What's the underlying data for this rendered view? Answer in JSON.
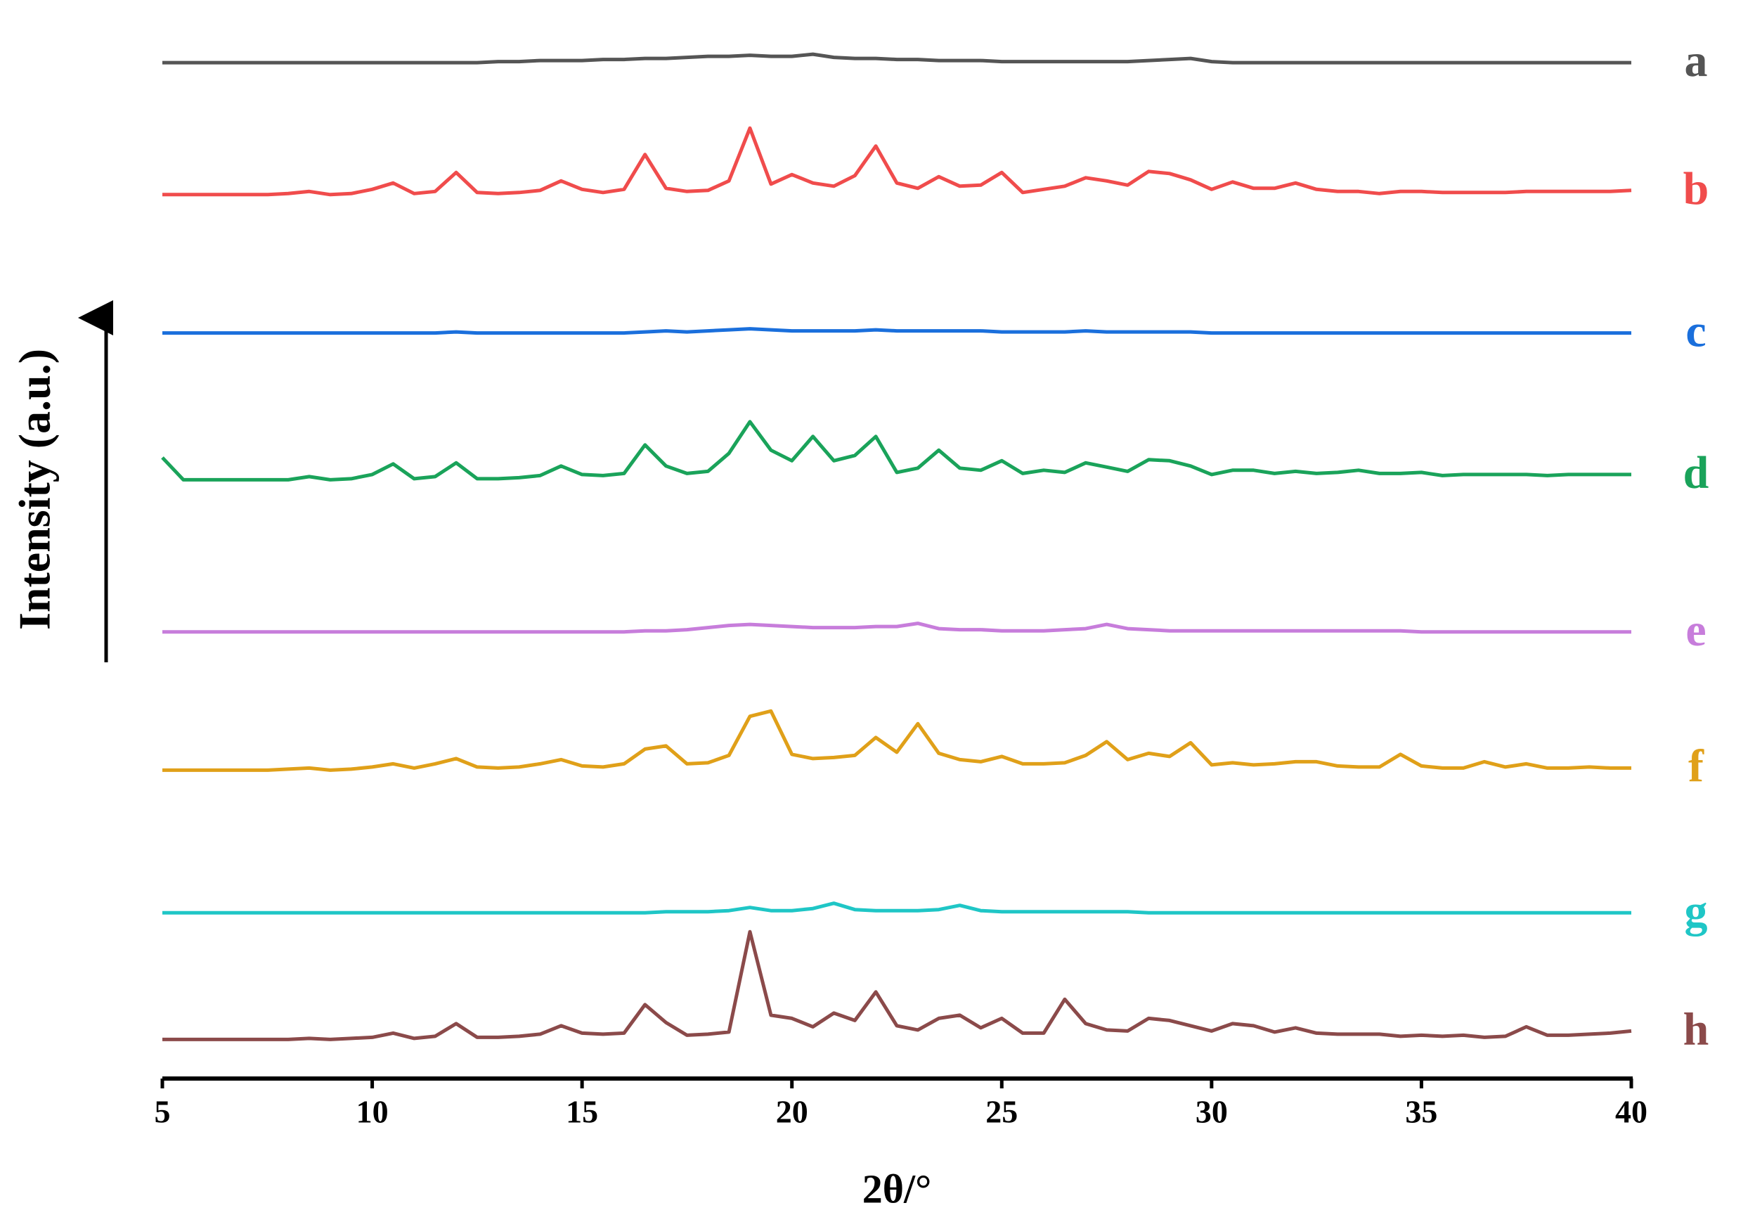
{
  "chart_data": {
    "type": "line",
    "x_label": "2θ/°",
    "y_label": "Intensity (a.u.)",
    "xlim": [
      5,
      40
    ],
    "xticks": [
      5,
      10,
      15,
      20,
      25,
      30,
      35,
      40
    ],
    "ylim": [
      0,
      100
    ],
    "grid": false,
    "x": [
      5,
      5.5,
      6,
      6.5,
      7,
      7.5,
      8,
      8.5,
      9,
      9.5,
      10,
      10.5,
      11,
      11.5,
      12,
      12.5,
      13,
      13.5,
      14,
      14.5,
      15,
      15.5,
      16,
      16.5,
      17,
      17.5,
      18,
      18.5,
      19,
      19.5,
      20,
      20.5,
      21,
      21.5,
      22,
      22.5,
      23,
      23.5,
      24,
      24.5,
      25,
      25.5,
      26,
      26.5,
      27,
      27.5,
      28,
      28.5,
      29,
      29.5,
      30,
      30.5,
      31,
      31.5,
      32,
      32.5,
      33,
      33.5,
      34,
      34.5,
      35,
      35.5,
      36,
      36.5,
      37,
      37.5,
      38,
      38.5,
      39,
      39.5,
      40
    ],
    "series": [
      {
        "name": "a",
        "color": "#555555",
        "values": [
          96.2,
          96.2,
          96.2,
          96.2,
          96.2,
          96.2,
          96.2,
          96.2,
          96.2,
          96.2,
          96.2,
          96.2,
          96.2,
          96.2,
          96.2,
          96.2,
          96.3,
          96.3,
          96.4,
          96.4,
          96.4,
          96.5,
          96.5,
          96.6,
          96.6,
          96.7,
          96.8,
          96.8,
          96.9,
          96.8,
          96.8,
          97.0,
          96.7,
          96.6,
          96.6,
          96.5,
          96.5,
          96.4,
          96.4,
          96.4,
          96.3,
          96.3,
          96.3,
          96.3,
          96.3,
          96.3,
          96.3,
          96.4,
          96.5,
          96.6,
          96.3,
          96.2,
          96.2,
          96.2,
          96.2,
          96.2,
          96.2,
          96.2,
          96.2,
          96.2,
          96.2,
          96.2,
          96.2,
          96.2,
          96.2,
          96.2,
          96.2,
          96.2,
          96.2,
          96.2,
          96.2
        ]
      },
      {
        "name": "b",
        "color": "#f04c4c",
        "values": [
          83.7,
          83.7,
          83.7,
          83.7,
          83.7,
          83.7,
          83.8,
          84.0,
          83.7,
          83.8,
          84.2,
          84.8,
          83.8,
          84.0,
          85.8,
          83.9,
          83.8,
          83.9,
          84.1,
          85.0,
          84.2,
          83.9,
          84.2,
          87.5,
          84.3,
          84.0,
          84.1,
          85.0,
          90.0,
          84.7,
          85.6,
          84.8,
          84.5,
          85.5,
          88.3,
          84.8,
          84.3,
          85.4,
          84.5,
          84.6,
          85.8,
          83.9,
          84.2,
          84.5,
          85.3,
          85.0,
          84.6,
          85.9,
          85.7,
          85.1,
          84.2,
          84.9,
          84.3,
          84.3,
          84.8,
          84.2,
          84.0,
          84.0,
          83.8,
          84.0,
          84.0,
          83.9,
          83.9,
          83.9,
          83.9,
          84.0,
          84.0,
          84.0,
          84.0,
          84.0,
          84.1
        ]
      },
      {
        "name": "c",
        "color": "#1a6fdc",
        "values": [
          70.6,
          70.6,
          70.6,
          70.6,
          70.6,
          70.6,
          70.6,
          70.6,
          70.6,
          70.6,
          70.6,
          70.6,
          70.6,
          70.6,
          70.7,
          70.6,
          70.6,
          70.6,
          70.6,
          70.6,
          70.6,
          70.6,
          70.6,
          70.7,
          70.8,
          70.7,
          70.8,
          70.9,
          71.0,
          70.9,
          70.8,
          70.8,
          70.8,
          70.8,
          70.9,
          70.8,
          70.8,
          70.8,
          70.8,
          70.8,
          70.7,
          70.7,
          70.7,
          70.7,
          70.8,
          70.7,
          70.7,
          70.7,
          70.7,
          70.7,
          70.6,
          70.6,
          70.6,
          70.6,
          70.6,
          70.6,
          70.6,
          70.6,
          70.6,
          70.6,
          70.6,
          70.6,
          70.6,
          70.6,
          70.6,
          70.6,
          70.6,
          70.6,
          70.6,
          70.6,
          70.6
        ]
      },
      {
        "name": "d",
        "color": "#1aa35a",
        "values": [
          58.8,
          56.7,
          56.7,
          56.7,
          56.7,
          56.7,
          56.7,
          57.0,
          56.7,
          56.8,
          57.2,
          58.2,
          56.8,
          57.0,
          58.3,
          56.8,
          56.8,
          56.9,
          57.1,
          58.0,
          57.2,
          57.1,
          57.3,
          60.0,
          58.0,
          57.3,
          57.5,
          59.2,
          62.2,
          59.5,
          58.5,
          60.8,
          58.5,
          59.0,
          60.8,
          57.4,
          57.8,
          59.5,
          57.8,
          57.6,
          58.5,
          57.3,
          57.6,
          57.4,
          58.3,
          57.9,
          57.5,
          58.6,
          58.5,
          58.0,
          57.2,
          57.6,
          57.6,
          57.3,
          57.5,
          57.3,
          57.4,
          57.6,
          57.3,
          57.3,
          57.4,
          57.1,
          57.2,
          57.2,
          57.2,
          57.2,
          57.1,
          57.2,
          57.2,
          57.2,
          57.2
        ]
      },
      {
        "name": "e",
        "color": "#c77ddb",
        "values": [
          42.3,
          42.3,
          42.3,
          42.3,
          42.3,
          42.3,
          42.3,
          42.3,
          42.3,
          42.3,
          42.3,
          42.3,
          42.3,
          42.3,
          42.3,
          42.3,
          42.3,
          42.3,
          42.3,
          42.3,
          42.3,
          42.3,
          42.3,
          42.4,
          42.4,
          42.5,
          42.7,
          42.9,
          43.0,
          42.9,
          42.8,
          42.7,
          42.7,
          42.7,
          42.8,
          42.8,
          43.1,
          42.6,
          42.5,
          42.5,
          42.4,
          42.4,
          42.4,
          42.5,
          42.6,
          43.0,
          42.6,
          42.5,
          42.4,
          42.4,
          42.4,
          42.4,
          42.4,
          42.4,
          42.4,
          42.4,
          42.4,
          42.4,
          42.4,
          42.4,
          42.3,
          42.3,
          42.3,
          42.3,
          42.3,
          42.3,
          42.3,
          42.3,
          42.3,
          42.3,
          42.3
        ]
      },
      {
        "name": "f",
        "color": "#e0a019",
        "values": [
          29.2,
          29.2,
          29.2,
          29.2,
          29.2,
          29.2,
          29.3,
          29.4,
          29.2,
          29.3,
          29.5,
          29.8,
          29.4,
          29.8,
          30.3,
          29.5,
          29.4,
          29.5,
          29.8,
          30.2,
          29.6,
          29.5,
          29.8,
          31.2,
          31.5,
          29.8,
          29.9,
          30.6,
          34.3,
          34.8,
          30.7,
          30.3,
          30.4,
          30.6,
          32.3,
          30.9,
          33.6,
          30.8,
          30.2,
          30.0,
          30.5,
          29.8,
          29.8,
          29.9,
          30.6,
          31.9,
          30.2,
          30.8,
          30.5,
          31.8,
          29.7,
          29.9,
          29.7,
          29.8,
          30.0,
          30.0,
          29.6,
          29.5,
          29.5,
          30.7,
          29.6,
          29.4,
          29.4,
          30.0,
          29.5,
          29.8,
          29.4,
          29.4,
          29.5,
          29.4,
          29.4
        ]
      },
      {
        "name": "g",
        "color": "#1fc6c6",
        "values": [
          15.7,
          15.7,
          15.7,
          15.7,
          15.7,
          15.7,
          15.7,
          15.7,
          15.7,
          15.7,
          15.7,
          15.7,
          15.7,
          15.7,
          15.7,
          15.7,
          15.7,
          15.7,
          15.7,
          15.7,
          15.7,
          15.7,
          15.7,
          15.7,
          15.8,
          15.8,
          15.8,
          15.9,
          16.2,
          15.9,
          15.9,
          16.1,
          16.6,
          16.0,
          15.9,
          15.9,
          15.9,
          16.0,
          16.4,
          15.9,
          15.8,
          15.8,
          15.8,
          15.8,
          15.8,
          15.8,
          15.8,
          15.7,
          15.7,
          15.7,
          15.7,
          15.7,
          15.7,
          15.7,
          15.7,
          15.7,
          15.7,
          15.7,
          15.7,
          15.7,
          15.7,
          15.7,
          15.7,
          15.7,
          15.7,
          15.7,
          15.7,
          15.7,
          15.7,
          15.7,
          15.7
        ]
      },
      {
        "name": "h",
        "color": "#8b4a4a",
        "values": [
          3.7,
          3.7,
          3.7,
          3.7,
          3.7,
          3.7,
          3.7,
          3.8,
          3.7,
          3.8,
          3.9,
          4.3,
          3.8,
          4.0,
          5.2,
          3.9,
          3.9,
          4.0,
          4.2,
          5.0,
          4.3,
          4.2,
          4.3,
          7.0,
          5.3,
          4.1,
          4.2,
          4.4,
          13.9,
          6.0,
          5.7,
          4.9,
          6.2,
          5.5,
          8.2,
          5.0,
          4.6,
          5.7,
          6.0,
          4.8,
          5.7,
          4.3,
          4.3,
          7.5,
          5.2,
          4.6,
          4.5,
          5.7,
          5.5,
          5.0,
          4.5,
          5.2,
          5.0,
          4.4,
          4.8,
          4.3,
          4.2,
          4.2,
          4.2,
          4.0,
          4.1,
          4.0,
          4.1,
          3.9,
          4.0,
          4.9,
          4.1,
          4.1,
          4.2,
          4.3,
          4.5
        ]
      }
    ]
  }
}
